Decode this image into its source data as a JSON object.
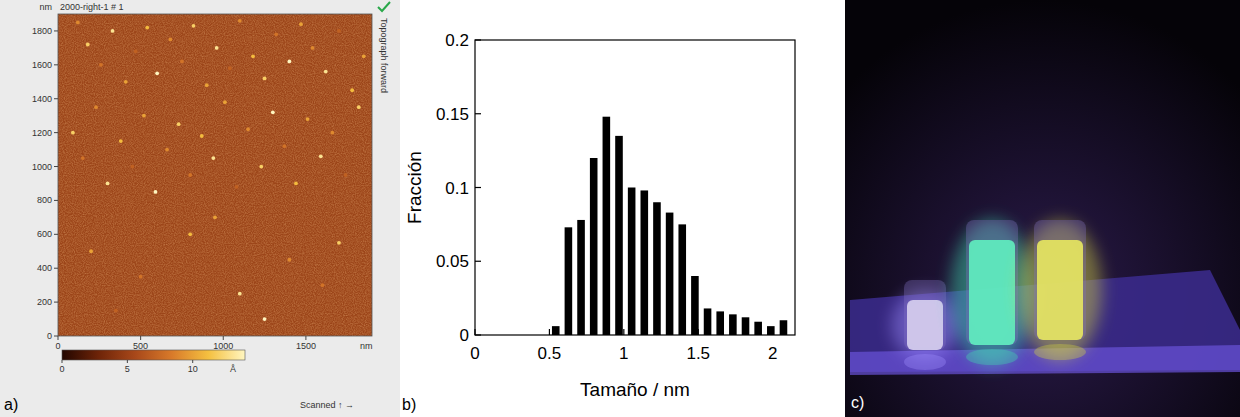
{
  "chart_data": [
    {
      "type": "image",
      "title": "2000-right-1 # 1",
      "annotations": [
        "a)",
        "Topograph forward",
        "Scanned ↑ →"
      ],
      "xlabel": "nm",
      "ylabel": "nm",
      "xlim": [
        0,
        1900
      ],
      "ylim": [
        0,
        1900
      ],
      "xticks": [
        0,
        500,
        1000,
        1500
      ],
      "yticks": [
        0,
        200,
        400,
        600,
        800,
        1000,
        1200,
        1400,
        1600,
        1800
      ],
      "x": [
        120,
        180,
        260,
        330,
        410,
        470,
        540,
        600,
        680,
        750,
        820,
        900,
        960,
        1040,
        1100,
        1180,
        1250,
        1320,
        1400,
        1470,
        1540,
        1620,
        1700,
        1780,
        1850,
        90,
        150,
        230,
        300,
        380,
        450,
        520,
        590,
        660,
        730,
        800,
        870,
        940,
        1010,
        1080,
        1150,
        1230,
        1300,
        1370,
        1440,
        1510,
        1590,
        1660,
        1740,
        1820,
        200,
        500,
        800,
        1100,
        1400,
        1700,
        350,
        950,
        1250,
        1600
      ],
      "values": [
        1850,
        1720,
        1600,
        1800,
        1500,
        1680,
        1820,
        1550,
        1750,
        1620,
        1830,
        1480,
        1700,
        1580,
        1860,
        1650,
        1520,
        1780,
        1620,
        1840,
        1700,
        1560,
        1800,
        1450,
        1650,
        1200,
        1050,
        1350,
        900,
        1150,
        1000,
        1300,
        850,
        1100,
        1250,
        950,
        1180,
        1050,
        1380,
        880,
        1220,
        1000,
        1320,
        1120,
        900,
        1280,
        1060,
        1200,
        950,
        1350,
        500,
        350,
        600,
        250,
        450,
        550,
        150,
        700,
        100,
        300
      ],
      "heights": [
        9,
        12,
        8,
        13,
        10,
        7,
        11,
        14,
        9,
        8,
        12,
        10,
        13,
        7,
        9,
        11,
        12,
        8,
        14,
        10,
        9,
        13,
        7,
        11,
        10,
        12,
        8,
        9,
        13,
        11,
        7,
        10,
        14,
        9,
        12,
        8,
        11,
        13,
        10,
        7,
        9,
        12,
        14,
        8,
        11,
        10,
        13,
        9,
        7,
        12,
        10,
        8,
        11,
        13,
        9,
        12,
        7,
        10,
        14,
        8
      ],
      "colorbar_range": [
        0,
        14
      ],
      "colorbar_ticks": [
        0,
        5,
        10
      ],
      "colorbar_label": "Å"
    },
    {
      "type": "histogram",
      "annotations": [
        "b)"
      ],
      "xlabel": "Tamaño / nm",
      "ylabel": "Fracción",
      "xlim": [
        0,
        2.15
      ],
      "ylim": [
        0,
        0.2
      ],
      "xticks": [
        0,
        0.5,
        1,
        1.5,
        2
      ],
      "yticks": [
        0,
        0.05,
        0.1,
        0.15,
        0.2
      ],
      "bins": [
        0.5,
        0.585,
        0.67,
        0.755,
        0.84,
        0.925,
        1.01,
        1.095,
        1.18,
        1.265,
        1.35,
        1.435,
        1.52,
        1.605,
        1.69,
        1.775,
        1.86,
        1.945,
        2.03,
        2.115
      ],
      "values": [
        0.006,
        0.073,
        0.078,
        0.12,
        0.148,
        0.135,
        0.1,
        0.098,
        0.09,
        0.083,
        0.075,
        0.04,
        0.018,
        0.016,
        0.014,
        0.012,
        0.009,
        0.006,
        0.01
      ],
      "color": "#000000"
    },
    {
      "type": "image",
      "annotations": [
        "c)"
      ]
    }
  ]
}
